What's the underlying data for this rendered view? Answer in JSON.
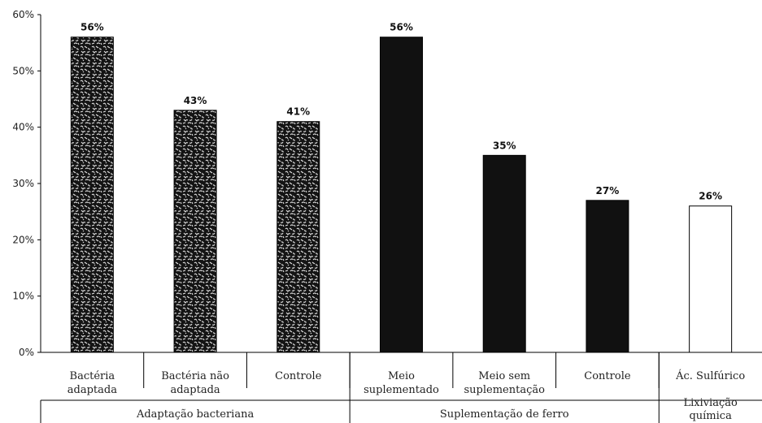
{
  "chart_data": {
    "type": "bar",
    "title": "",
    "xlabel": "",
    "ylabel": "",
    "ylim": [
      0,
      60
    ],
    "yticks": [
      "0%",
      "10%",
      "20%",
      "30%",
      "40%",
      "50%",
      "60%"
    ],
    "grid": false,
    "categories": [
      [
        "Bactéria",
        "adaptada"
      ],
      [
        "Bactéria não",
        "adaptada"
      ],
      [
        "Controle"
      ],
      [
        "Meio",
        "suplementado"
      ],
      [
        "Meio sem",
        "suplementação"
      ],
      [
        "Controle"
      ],
      [
        "Ác. Sulfúrico"
      ]
    ],
    "values": [
      56,
      43,
      41,
      56,
      35,
      27,
      26
    ],
    "value_labels": [
      "56%",
      "43%",
      "41%",
      "56%",
      "35%",
      "27%",
      "26%"
    ],
    "bar_styles": [
      "speckled",
      "speckled",
      "speckled",
      "black",
      "black",
      "black",
      "white"
    ],
    "groups": [
      {
        "label": [
          "Adaptação bacteriana"
        ],
        "from": 0,
        "to": 2
      },
      {
        "label": [
          "Suplementação de ferro"
        ],
        "from": 3,
        "to": 5
      },
      {
        "label": [
          "Lixiviação",
          "química"
        ],
        "from": 6,
        "to": 6
      }
    ]
  }
}
